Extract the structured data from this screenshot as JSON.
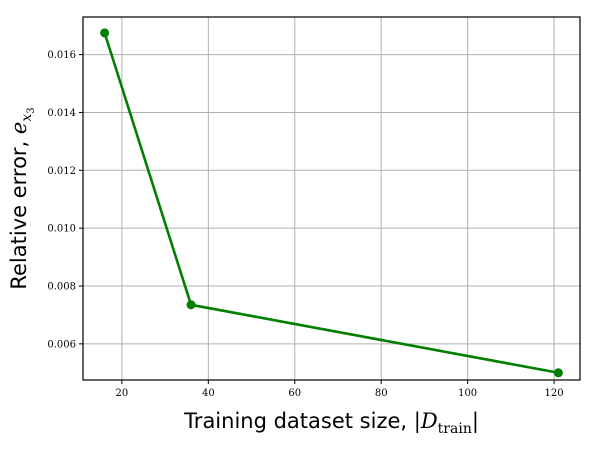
{
  "chart_data": {
    "type": "line",
    "title": "",
    "xlabel": {
      "prefix": "Training dataset size, ",
      "math_bar_open": "|",
      "math_symbol": "D",
      "math_subscript": "train",
      "math_bar_close": "|"
    },
    "ylabel": {
      "prefix": "Relative error, ",
      "math_symbol": "e",
      "math_subscript": "x",
      "math_subsubscript": "3"
    },
    "xlim": [
      11,
      126
    ],
    "ylim": [
      0.00475,
      0.0173
    ],
    "xticks": [
      20,
      40,
      60,
      80,
      100,
      120
    ],
    "yticks": [
      0.006,
      0.008,
      0.01,
      0.012,
      0.014,
      0.016
    ],
    "xtick_labels": [
      "20",
      "40",
      "60",
      "80",
      "100",
      "120"
    ],
    "ytick_labels": [
      "0.006",
      "0.008",
      "0.010",
      "0.012",
      "0.014",
      "0.016"
    ],
    "grid": true,
    "series": [
      {
        "x": [
          16,
          36,
          121
        ],
        "y": [
          0.01675,
          0.00735,
          0.005
        ],
        "color": "#007f00"
      }
    ]
  }
}
